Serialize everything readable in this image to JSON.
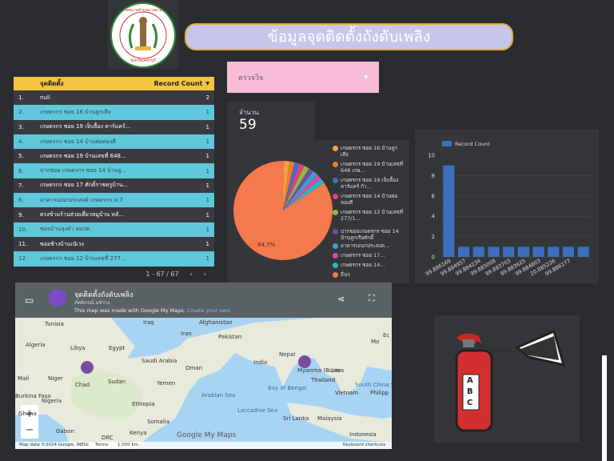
{
  "header": {
    "title": "ข้อมูลจุดติดตั้งถังดับเพลิง",
    "logo_text_top": "เทศบาลตำบลบางตาล",
    "logo_text_bottom": "จังหวัดเพชรบุรี"
  },
  "filter": {
    "label": "ตรวจวิจ",
    "arrow": "▾"
  },
  "table": {
    "col_name": "จุดติดตั้ง",
    "col_count": "Record Count",
    "sort_icon": "sort-desc-icon",
    "rows": [
      {
        "idx": "1.",
        "name": "null",
        "count": "2"
      },
      {
        "idx": "2.",
        "name": "เกษตรกร ซอย 16 บ้านลูกเสือ",
        "count": "1"
      },
      {
        "idx": "3.",
        "name": "เกษตรกร ซอย 19 เจ็บลื้อง คาร์แคร์...",
        "count": "1"
      },
      {
        "idx": "4.",
        "name": "เกษตรกร ซอย 14 บ้านพ่อทองดี",
        "count": "1"
      },
      {
        "idx": "5.",
        "name": "เกษตรกร ซอย 19 บ้านเลขที่ 648...",
        "count": "1"
      },
      {
        "idx": "6.",
        "name": "ปากซอย เกษตรกร ซอย 14 บ้านลู...",
        "count": "1"
      },
      {
        "idx": "7.",
        "name": "เกษตรกร ซอย 17 ศักดิ์ราชครูบ้าน...",
        "count": "1"
      },
      {
        "idx": "8.",
        "name": "อาคารเอนกประสงค์ เกษตรกร ม.7",
        "count": "1"
      },
      {
        "idx": "9.",
        "name": "ตรงข้ามร้านส่วยเตี๋ยวหมูบ้าน หลั...",
        "count": "1"
      },
      {
        "idx": "10.",
        "name": "ซอยบ้านลุงดำ ฮมปต.",
        "count": "1"
      },
      {
        "idx": "11.",
        "name": "ซอยช้างบ้านเป๋เวง",
        "count": "1"
      },
      {
        "idx": "12.",
        "name": "เกษตรกร ซอย 12 บ้านเลขที่ 277...",
        "count": "1"
      }
    ],
    "pagination": "1 - 67 / 67"
  },
  "scorecard": {
    "label": "จำนวน",
    "value": "59"
  },
  "colors": {
    "accent_yellow": "#f5c342",
    "row_cyan": "#5ec8da",
    "pie_main": "#f4794c",
    "bar_blue": "#3d6fbf",
    "title_bg": "#c7c6ea",
    "filter_bg": "#f6bcd8"
  },
  "chart_data": [
    {
      "type": "pie",
      "slices": [
        {
          "name": "เกษตรกร ซอย 16 บ้านลูกเสือ",
          "value": 1.7,
          "color": "#f4a340"
        },
        {
          "name": "เกษตรกร ซอย 19 บ้านเลขที่ 648 เกษ...",
          "value": 1.7,
          "color": "#f07a2a"
        },
        {
          "name": "เกษตรกร ซอย 19 เจ็บลื้อง คาร์แคร์ ก้า...",
          "value": 1.7,
          "color": "#4a6dc4"
        },
        {
          "name": "เกษตรกร ซอย 14 บ้านพ่อทองดี",
          "value": 1.7,
          "color": "#e0427c"
        },
        {
          "name": "เกษตรกร ซอย 12 บ้านเลขที่ 277/1...",
          "value": 1.7,
          "color": "#8fb83c"
        },
        {
          "name": "ปากซอยเกษตรกร ซอย 14 บ้านลูกเรือศักดิ์",
          "value": 1.7,
          "color": "#6b4fa3"
        },
        {
          "name": "อาคารเอนกประสงค...",
          "value": 1.7,
          "color": "#3b9fcf"
        },
        {
          "name": "เกษตรกร ซอย 17...",
          "value": 1.7,
          "color": "#d64ca8"
        },
        {
          "name": "เกษตรกร ซอย 14...",
          "value": 1.7,
          "color": "#26b8c4"
        },
        {
          "name": "อื่นๆ",
          "value": 84.7,
          "color": "#f4794c"
        }
      ],
      "main_label": "84.7%"
    },
    {
      "type": "bar",
      "series": [
        {
          "name": "Record Count",
          "values": [
            9,
            1,
            1,
            1,
            1,
            1,
            1,
            1,
            1,
            1
          ]
        }
      ],
      "categories": [
        "99.886169",
        "99.884957",
        "99.884234",
        "99.885008",
        "99.883703",
        "99.883625",
        "99.884803",
        "20.885226",
        "99.886177",
        ""
      ],
      "ylim": [
        0,
        10
      ],
      "yticks": [
        "0",
        "2",
        "4",
        "6",
        "8",
        "10"
      ]
    }
  ],
  "map": {
    "title": "จุดติดตั้งถังดับเพลิง",
    "author": "ภัคติภรณ์ แช่ว่าง",
    "notice": "This map was made with Google My Maps.",
    "notice_link": "Create your own.",
    "labels": [
      {
        "text": "Tunisia"
      },
      {
        "text": "Iraq"
      },
      {
        "text": "Afghanistan"
      },
      {
        "text": "Iran"
      },
      {
        "text": "Algeria"
      },
      {
        "text": "Libya"
      },
      {
        "text": "Egypt"
      },
      {
        "text": "Pakistan"
      },
      {
        "text": "Saudi Arabia"
      },
      {
        "text": "Oman"
      },
      {
        "text": "India"
      },
      {
        "text": "Nepal"
      },
      {
        "text": "Myanma (Burm"
      },
      {
        "text": "Mali"
      },
      {
        "text": "Niger"
      },
      {
        "text": "Chad"
      },
      {
        "text": "Sudan"
      },
      {
        "text": "Yemen"
      },
      {
        "text": "Thailand"
      },
      {
        "text": "Laos"
      },
      {
        "text": "Burkina Faso"
      },
      {
        "text": "Nigeria"
      },
      {
        "text": "Ethiopia"
      },
      {
        "text": "Arabian Sea"
      },
      {
        "text": "Bay of Bengal"
      },
      {
        "text": "Vietnam"
      },
      {
        "text": "South China Sea"
      },
      {
        "text": "Philipp"
      },
      {
        "text": "Ghana"
      },
      {
        "text": "Somalia"
      },
      {
        "text": "Sri Lanka"
      },
      {
        "text": "Laccadive Sea"
      },
      {
        "text": "Malaysia"
      },
      {
        "text": "Gabon"
      },
      {
        "text": "Kenya"
      },
      {
        "text": "DRC"
      },
      {
        "text": "Indonesia"
      },
      {
        "text": "Ec"
      },
      {
        "text": "Mo"
      }
    ],
    "footer_left": "Map data ©2024 Google, INEGI",
    "footer_terms": "Terms",
    "footer_scale": "1,000 km",
    "footer_right": "Keyboard shortcuts",
    "brand": "Google My Maps"
  },
  "extinguisher": {
    "letters": [
      "A",
      "B",
      "C"
    ]
  }
}
